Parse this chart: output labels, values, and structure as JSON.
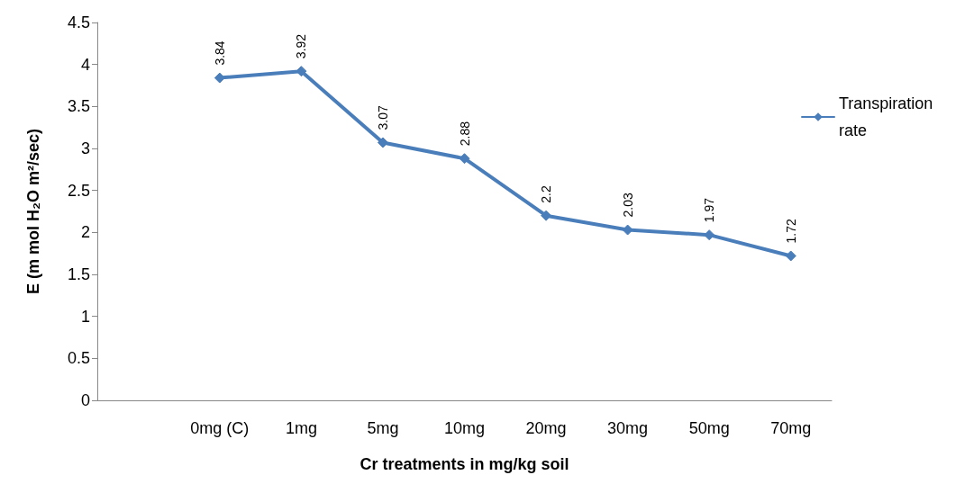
{
  "chart_data": {
    "type": "line",
    "xlabel": "Cr treatments in mg/kg soil",
    "ylabel": "E (m mol H₂O m²/sec)",
    "categories": [
      null,
      "0mg (C)",
      "1mg",
      "5mg",
      "10mg",
      "20mg",
      "30mg",
      "50mg",
      "70mg"
    ],
    "series": [
      {
        "name": "Transpiration rate",
        "color": "#4a7ebb",
        "values": [
          null,
          3.84,
          3.92,
          3.07,
          2.88,
          2.2,
          2.03,
          1.97,
          1.72
        ]
      }
    ],
    "ylim": [
      0,
      4.5
    ],
    "yticks": [
      0,
      0.5,
      1,
      1.5,
      2,
      2.5,
      3,
      3.5,
      4,
      4.5
    ],
    "grid": false,
    "legend": "right",
    "marker": "diamond",
    "line_style": "solid",
    "data_labels": true
  }
}
